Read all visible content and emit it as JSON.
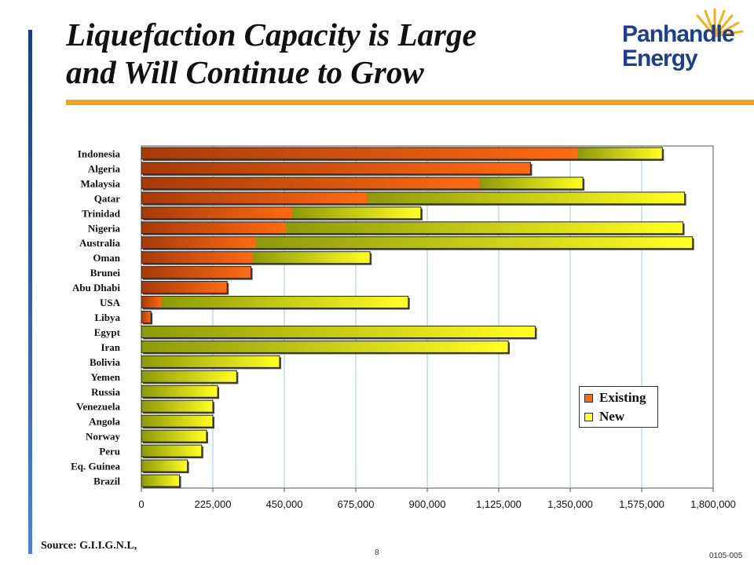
{
  "slide": {
    "title": "Liquefaction Capacity is Large\nand Will Continue to Grow",
    "logo_text": "Panhandle\nEnergy",
    "source": "Source: G.I.I.G.N.L,",
    "page_number": "8",
    "slide_code": "0105-005"
  },
  "colors": {
    "accent_rule": "#f4a21a",
    "existing_dark": "#a83a08",
    "existing_light": "#ff6a10",
    "new_dark": "#8c9a08",
    "new_light": "#ffff20",
    "gridline": "#9ec8e6",
    "logo_blue": "#1e3f8e",
    "logo_sun": "#f4b21a"
  },
  "chart_data": {
    "type": "bar",
    "orientation": "horizontal",
    "stacked": true,
    "categories": [
      "Indonesia",
      "Algeria",
      "Malaysia",
      "Qatar",
      "Trinidad",
      "Nigeria",
      "Australia",
      "Oman",
      "Brunei",
      "Abu Dhabi",
      "USA",
      "Libya",
      "Egypt",
      "Iran",
      "Bolivia",
      "Yemen",
      "Russia",
      "Venezuela",
      "Angola",
      "Norway",
      "Peru",
      "Eq. Guinea",
      "Brazil"
    ],
    "series": [
      {
        "name": "Existing",
        "values": [
          1375000,
          1225000,
          1065000,
          710000,
          475000,
          455000,
          360000,
          350000,
          345000,
          270000,
          65000,
          30000,
          0,
          0,
          0,
          0,
          0,
          0,
          0,
          0,
          0,
          0,
          0
        ]
      },
      {
        "name": "New",
        "values": [
          265000,
          0,
          325000,
          1000000,
          405000,
          1250000,
          1375000,
          370000,
          0,
          0,
          775000,
          0,
          1240000,
          1155000,
          435000,
          300000,
          240000,
          225000,
          225000,
          205000,
          190000,
          145000,
          120000
        ]
      }
    ],
    "xlim": [
      0,
      1800000
    ],
    "xticks": [
      0,
      225000,
      450000,
      675000,
      900000,
      1125000,
      1350000,
      1575000,
      1800000
    ],
    "xtick_labels": [
      "0",
      "225,000",
      "450,000",
      "675,000",
      "900,000",
      "1,125,000",
      "1,350,000",
      "1,575,000",
      "1,800,000"
    ],
    "grid": true,
    "legend_position": "bottom-right",
    "legend": [
      "Existing",
      "New"
    ]
  }
}
